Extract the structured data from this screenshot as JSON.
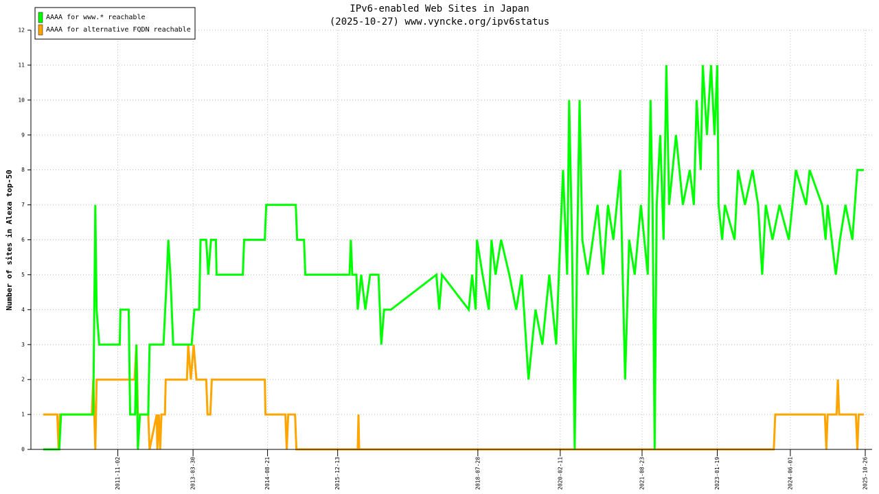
{
  "chart_data": {
    "type": "line",
    "title": "IPv6-enabled Web Sites in Japan",
    "subtitle": "(2025-10-27) www.vyncke.org/ipv6status",
    "y_label": "Number of sites in Alexa top-50",
    "xlim": [
      "2010-03-18",
      "2025-12-12"
    ],
    "xticks": [
      "2011-11-02",
      "2013-03-30",
      "2014-08-21",
      "2015-12-13",
      "2018-07-28",
      "2020-02-11",
      "2021-08-23",
      "2023-01-19",
      "2024-06-01",
      "2025-10-26"
    ],
    "ylim": [
      0,
      12
    ],
    "yticks": [
      0,
      1,
      2,
      3,
      4,
      5,
      6,
      7,
      8,
      9,
      10,
      11,
      12
    ],
    "grid": true,
    "legend": "top-left",
    "series": [
      {
        "name": "AAAA for www.* reachable",
        "color": "#00ff00",
        "x": [
          "2010-06-10",
          "2010-09-28",
          "2010-10-10",
          "2011-05-18",
          "2011-06-01",
          "2011-06-10",
          "2011-06-28",
          "2011-11-15",
          "2011-11-20",
          "2012-01-15",
          "2012-01-25",
          "2012-02-28",
          "2012-03-08",
          "2012-03-18",
          "2012-04-01",
          "2012-05-28",
          "2012-06-06",
          "2012-09-09",
          "2012-10-02",
          "2012-10-12",
          "2012-10-26",
          "2012-11-14",
          "2013-03-20",
          "2013-04-08",
          "2013-05-11",
          "2013-05-20",
          "2013-06-28",
          "2013-07-12",
          "2013-07-31",
          "2013-09-02",
          "2013-09-07",
          "2014-03-05",
          "2014-03-14",
          "2014-08-02",
          "2014-08-12",
          "2015-03-02",
          "2015-03-11",
          "2015-04-27",
          "2015-05-06",
          "2016-03-03",
          "2016-03-12",
          "2016-03-22",
          "2016-04-19",
          "2016-04-28",
          "2016-05-22",
          "2016-06-19",
          "2016-07-22",
          "2016-09-17",
          "2016-10-06",
          "2016-10-25",
          "2016-12-11",
          "2017-10-18",
          "2017-11-06",
          "2017-11-25",
          "2018-05-27",
          "2018-06-19",
          "2018-07-13",
          "2018-07-22",
          "2018-08-29",
          "2018-10-11",
          "2018-10-29",
          "2018-11-26",
          "2019-01-03",
          "2019-02-28",
          "2019-04-16",
          "2019-05-24",
          "2019-07-09",
          "2019-08-26",
          "2019-10-12",
          "2019-11-28",
          "2020-01-14",
          "2020-02-11",
          "2020-03-01",
          "2020-03-29",
          "2020-04-12",
          "2020-05-01",
          "2020-05-20",
          "2020-06-03",
          "2020-06-22",
          "2020-07-11",
          "2020-08-18",
          "2020-09-20",
          "2020-10-23",
          "2020-11-30",
          "2021-01-02",
          "2021-02-08",
          "2021-03-27",
          "2021-04-29",
          "2021-05-27",
          "2021-07-04",
          "2021-08-15",
          "2021-10-01",
          "2021-10-20",
          "2021-11-03",
          "2021-11-17",
          "2021-12-01",
          "2021-12-25",
          "2022-01-17",
          "2022-02-05",
          "2022-02-24",
          "2022-04-12",
          "2022-05-29",
          "2022-07-15",
          "2022-08-12",
          "2022-08-31",
          "2022-09-28",
          "2022-10-12",
          "2022-11-09",
          "2022-12-07",
          "2022-12-31",
          "2023-01-19",
          "2023-01-28",
          "2023-02-21",
          "2023-03-12",
          "2023-05-17",
          "2023-06-10",
          "2023-07-27",
          "2023-09-17",
          "2023-10-25",
          "2023-11-22",
          "2023-12-16",
          "2024-01-31",
          "2024-03-19",
          "2024-05-22",
          "2024-06-15",
          "2024-07-09",
          "2024-09-17",
          "2024-10-11",
          "2025-01-04",
          "2025-01-28",
          "2025-02-11",
          "2025-03-11",
          "2025-04-08",
          "2025-05-06",
          "2025-06-13",
          "2025-07-30",
          "2025-09-02",
          "2025-10-16"
        ],
        "values": [
          0,
          0,
          1,
          1,
          7,
          4,
          3,
          3,
          4,
          4,
          1,
          1,
          3,
          0,
          1,
          1,
          3,
          3,
          5,
          6,
          5,
          3,
          3,
          4,
          4,
          6,
          6,
          5,
          6,
          6,
          5,
          5,
          6,
          6,
          7,
          7,
          6,
          6,
          5,
          5,
          6,
          5,
          5,
          4,
          5,
          4,
          5,
          5,
          3,
          4,
          4,
          5,
          4,
          5,
          4,
          5,
          4,
          6,
          5,
          4,
          6,
          5,
          6,
          5,
          4,
          5,
          2,
          4,
          3,
          5,
          3,
          6,
          8,
          5,
          10,
          6,
          0,
          5,
          10,
          6,
          5,
          6,
          7,
          5,
          7,
          6,
          8,
          2,
          6,
          5,
          7,
          5,
          10,
          7,
          0,
          7,
          9,
          6,
          11,
          7,
          9,
          7,
          8,
          7,
          10,
          8,
          11,
          9,
          11,
          9,
          11,
          7,
          6,
          7,
          6,
          8,
          7,
          8,
          7,
          5,
          7,
          6,
          7,
          6,
          7,
          8,
          7,
          8,
          7,
          6,
          7,
          6,
          5,
          6,
          7,
          6,
          8,
          8
        ]
      },
      {
        "name": "AAAA for alternative FQDN reachable",
        "color": "#ffa500",
        "x": [
          "2010-06-10",
          "2010-09-14",
          "2010-09-23",
          "2010-10-02",
          "2011-05-08",
          "2011-05-18",
          "2011-06-01",
          "2011-06-10",
          "2012-02-24",
          "2012-03-08",
          "2012-03-18",
          "2012-05-28",
          "2012-06-06",
          "2012-07-25",
          "2012-07-29",
          "2012-08-08",
          "2012-08-17",
          "2012-08-26",
          "2012-09-19",
          "2012-09-24",
          "2013-02-16",
          "2013-02-25",
          "2013-03-15",
          "2013-04-03",
          "2013-04-22",
          "2013-06-28",
          "2013-07-07",
          "2013-07-26",
          "2013-08-05",
          "2014-08-02",
          "2014-08-07",
          "2014-12-21",
          "2014-12-30",
          "2015-01-09",
          "2015-02-25",
          "2015-03-06",
          "2016-04-28",
          "2016-05-03",
          "2016-05-08",
          "2024-02-09",
          "2024-02-19",
          "2025-01-23",
          "2025-02-02",
          "2025-02-11",
          "2025-04-13",
          "2025-04-22",
          "2025-05-01",
          "2025-08-23",
          "2025-09-02",
          "2025-09-11",
          "2025-10-16"
        ],
        "values": [
          1,
          1,
          0,
          1,
          1,
          2,
          0,
          2,
          2,
          3,
          1,
          1,
          0,
          1,
          0,
          1,
          0,
          1,
          1,
          2,
          2,
          3,
          2,
          3,
          2,
          2,
          1,
          1,
          2,
          2,
          1,
          1,
          0,
          1,
          1,
          0,
          0,
          1,
          0,
          0,
          1,
          1,
          0,
          1,
          1,
          2,
          1,
          1,
          0,
          1,
          1
        ]
      }
    ]
  }
}
